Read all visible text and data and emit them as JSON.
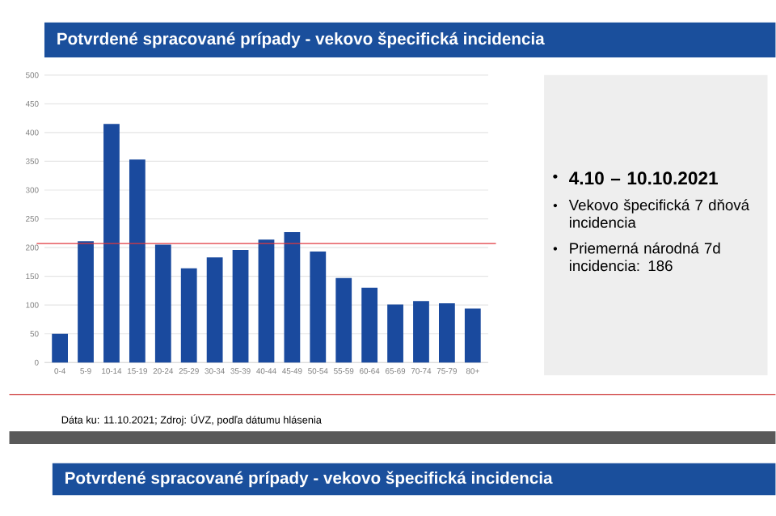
{
  "chart_data": {
    "type": "bar",
    "title": "Potvrdené spracované prípady - vekovo špecifická incidencia",
    "categories": [
      "0-4",
      "5-9",
      "10-14",
      "15-19",
      "20-24",
      "25-29",
      "30-34",
      "35-39",
      "40-44",
      "45-49",
      "50-54",
      "55-59",
      "60-64",
      "65-69",
      "70-74",
      "75-79",
      "80+"
    ],
    "values": [
      50,
      211,
      415,
      353,
      205,
      164,
      183,
      196,
      214,
      227,
      193,
      147,
      130,
      101,
      107,
      103,
      94
    ],
    "color": "#1a4a9e",
    "ylim": [
      0,
      500
    ],
    "yticks": [
      0,
      50,
      100,
      150,
      200,
      250,
      300,
      350,
      400,
      450,
      500
    ],
    "grid": "y",
    "ref_lines": [
      {
        "axis": "y",
        "value": 207,
        "color": "#e0393e"
      }
    ],
    "annotations": [
      "4.10 – 10.10.2021",
      "Vekovo špecifická 7 dňová incidencia",
      "Priemerná národná 7d incidencia: 186",
      "Dáta ku: 11.10.2021; Zdroj: ÚVZ, podľa dátumu hlásenia",
      "Potvrdené spracované prípady - vekovo špecifická incidencia"
    ]
  }
}
